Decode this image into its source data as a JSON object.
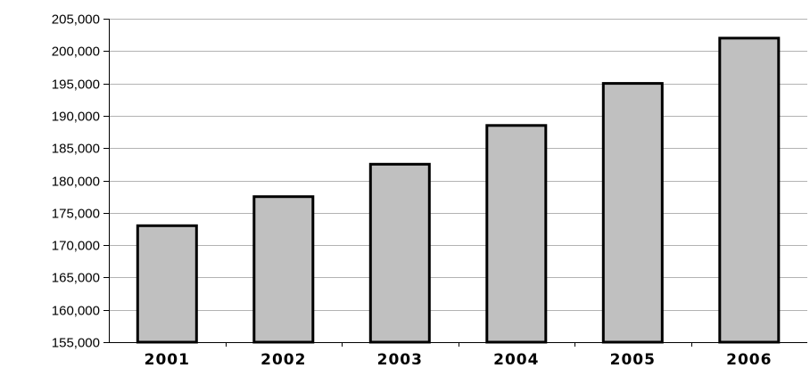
{
  "chart_data": {
    "type": "bar",
    "categories": [
      "2001",
      "2002",
      "2003",
      "2004",
      "2005",
      "2006"
    ],
    "values": [
      173000,
      177500,
      182500,
      188500,
      195000,
      202000
    ],
    "title": "",
    "xlabel": "",
    "ylabel": "",
    "ylim": [
      155000,
      205000
    ],
    "yticks": [
      155000,
      160000,
      165000,
      170000,
      175000,
      180000,
      185000,
      190000,
      195000,
      200000,
      205000
    ],
    "ytick_labels": [
      "155,000",
      "160,000",
      "165,000",
      "170,000",
      "175,000",
      "180,000",
      "185,000",
      "190,000",
      "195,000",
      "200,000",
      "205,000"
    ],
    "grid": "horizontal",
    "legend": "none",
    "bar_color": "#c0c0c0",
    "bar_edge_color": "#000000",
    "gridline_color": "#b3b3b3"
  }
}
